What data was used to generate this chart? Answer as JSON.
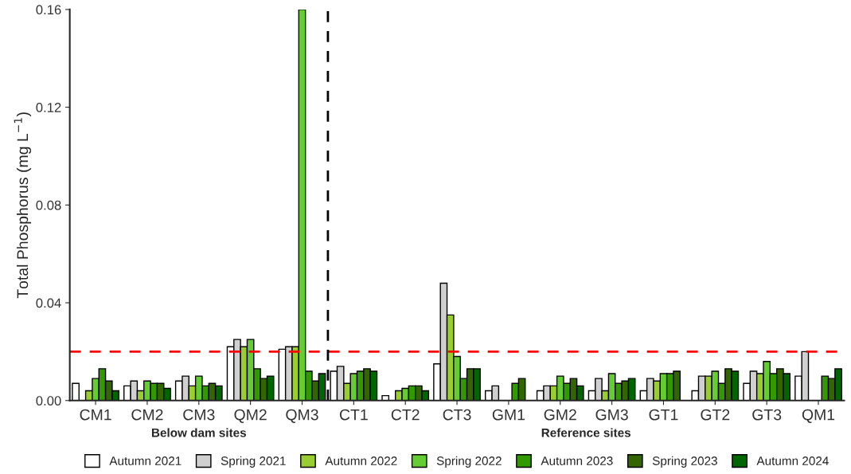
{
  "chart_data": {
    "type": "bar",
    "ylabel": "Total Phosphorus (mg L$^{−1}$)",
    "categories": [
      "CM1",
      "CM2",
      "CM3",
      "QM2",
      "QM3",
      "CT1",
      "CT2",
      "CT3",
      "GM1",
      "GM2",
      "GM3",
      "GT1",
      "GT2",
      "GT3",
      "QM1"
    ],
    "series": [
      {
        "name": "Autumn 2021",
        "color": "#ffffff",
        "values": [
          0.007,
          0.006,
          0.008,
          0.022,
          0.021,
          0.012,
          0.002,
          0.015,
          0.004,
          0.004,
          0.004,
          0.004,
          0.004,
          0.007,
          0.01
        ]
      },
      {
        "name": "Spring 2021",
        "color": "#d0d0d0",
        "values": [
          null,
          0.008,
          0.01,
          0.025,
          0.022,
          0.014,
          null,
          0.048,
          0.006,
          0.006,
          0.009,
          0.009,
          0.01,
          0.012,
          0.02
        ]
      },
      {
        "name": "Autumn 2022",
        "color": "#9acd32",
        "values": [
          0.004,
          0.004,
          0.006,
          0.022,
          0.022,
          0.007,
          0.004,
          0.035,
          null,
          0.006,
          0.004,
          0.008,
          0.01,
          0.011,
          null
        ]
      },
      {
        "name": "Spring 2022",
        "color": "#66cc33",
        "values": [
          0.009,
          0.008,
          0.01,
          0.025,
          0.16,
          0.011,
          0.005,
          0.018,
          null,
          0.01,
          0.011,
          0.011,
          0.012,
          0.016,
          null
        ]
      },
      {
        "name": "Autumn 2023",
        "color": "#339900",
        "values": [
          0.013,
          0.007,
          0.006,
          0.013,
          0.012,
          0.012,
          0.006,
          0.009,
          0.007,
          0.007,
          0.007,
          0.011,
          0.007,
          0.011,
          0.01
        ]
      },
      {
        "name": "Spring 2023",
        "color": "#336600",
        "values": [
          0.008,
          0.007,
          0.007,
          0.009,
          0.008,
          0.013,
          0.006,
          0.013,
          0.009,
          0.009,
          0.008,
          0.012,
          0.013,
          0.013,
          0.009
        ]
      },
      {
        "name": "Autumn 2024",
        "color": "#006600",
        "values": [
          0.004,
          0.005,
          0.006,
          0.01,
          0.011,
          0.012,
          0.004,
          0.013,
          null,
          0.006,
          0.009,
          null,
          0.012,
          0.011,
          0.013
        ]
      }
    ],
    "ylim": [
      0,
      0.16
    ],
    "yticks": [
      {
        "value": 0,
        "label": "0.00"
      },
      {
        "value": 0.04,
        "label": "0.04"
      },
      {
        "value": 0.08,
        "label": "0.08"
      },
      {
        "value": 0.12,
        "label": "0.12"
      },
      {
        "value": 0.16,
        "label": "0.16"
      }
    ],
    "ref_lines": [
      {
        "axis": "y",
        "value": 0.02,
        "color": "#ff0000",
        "line_style": "dashed"
      }
    ],
    "annotations": [
      "Below dam sites",
      "Reference sites"
    ],
    "grid": false,
    "legend": "bottom"
  }
}
